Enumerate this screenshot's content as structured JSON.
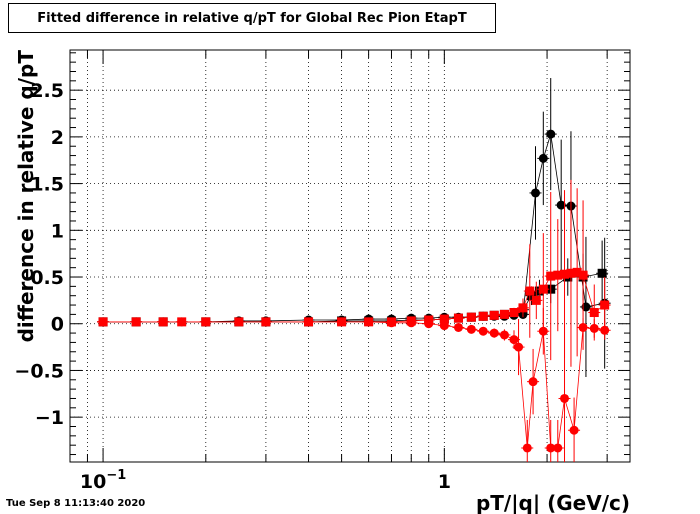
{
  "chart_data": {
    "type": "scatter",
    "title": "Fitted difference in relative q/pT for Global Rec Pion EtapT",
    "xlabel": "pT/|q| (GeV/c)",
    "ylabel": "difference in relative q/pT",
    "xscale": "log",
    "xlim": [
      0.08,
      3.5
    ],
    "ylim": [
      -1.48,
      2.93
    ],
    "grid": true,
    "x_tick_labels": [
      {
        "value": 0.1,
        "base": "10",
        "exp": "−1"
      },
      {
        "value": 1,
        "base": "1",
        "exp": ""
      }
    ],
    "y_ticks": [
      -1,
      -0.5,
      0,
      0.5,
      1,
      1.5,
      2,
      2.5
    ],
    "y_tick_labels": [
      "−1",
      "−0.5",
      "0",
      "0.5",
      "1",
      "1.5",
      "2",
      "2.5"
    ],
    "series": [
      {
        "marker": "circle",
        "color": "#000000",
        "x": [
          0.1,
          0.125,
          0.15,
          0.17,
          0.2,
          0.25,
          0.3,
          0.4,
          0.5,
          0.6,
          0.7,
          0.8,
          0.9,
          1.0,
          1.1,
          1.2,
          1.3,
          1.4,
          1.5,
          1.6,
          1.7,
          1.85,
          1.95,
          2.05,
          2.2,
          2.35,
          2.6,
          2.95
        ],
        "y": [
          0.02,
          0.02,
          0.02,
          0.02,
          0.02,
          0.03,
          0.03,
          0.04,
          0.04,
          0.05,
          0.05,
          0.06,
          0.06,
          0.07,
          0.07,
          0.07,
          0.08,
          0.08,
          0.08,
          0.09,
          0.1,
          1.4,
          1.77,
          2.03,
          1.27,
          1.26,
          0.18,
          0.22
        ],
        "err": [
          0.02,
          0.02,
          0.01,
          0.01,
          0.01,
          0.01,
          0.01,
          0.01,
          0.01,
          0.01,
          0.01,
          0.01,
          0.01,
          0.01,
          0.01,
          0.02,
          0.02,
          0.03,
          0.03,
          0.04,
          0.05,
          0.5,
          0.5,
          0.6,
          0.7,
          0.8,
          0.75,
          0.7
        ]
      },
      {
        "marker": "square",
        "color": "#000000",
        "x": [
          0.1,
          0.125,
          0.15,
          0.2,
          0.25,
          0.3,
          0.4,
          0.5,
          0.6,
          0.7,
          0.8,
          0.9,
          1.0,
          1.1,
          1.2,
          1.3,
          1.4,
          1.5,
          1.6,
          1.7,
          1.8,
          1.9,
          2.05,
          2.3,
          2.55,
          2.9
        ],
        "y": [
          0.02,
          0.02,
          0.02,
          0.02,
          0.02,
          0.02,
          0.02,
          0.03,
          0.03,
          0.03,
          0.04,
          0.04,
          0.05,
          0.06,
          0.07,
          0.08,
          0.09,
          0.1,
          0.12,
          0.15,
          0.3,
          0.35,
          0.37,
          0.5,
          0.5,
          0.54
        ],
        "err": [
          0.01,
          0.01,
          0.01,
          0.01,
          0.01,
          0.01,
          0.01,
          0.01,
          0.01,
          0.01,
          0.01,
          0.01,
          0.01,
          0.01,
          0.01,
          0.02,
          0.02,
          0.03,
          0.04,
          0.05,
          0.1,
          0.12,
          0.15,
          0.2,
          0.25,
          0.35
        ]
      },
      {
        "marker": "circle",
        "color": "#ff0000",
        "x": [
          0.1,
          0.125,
          0.15,
          0.2,
          0.3,
          0.4,
          0.5,
          0.6,
          0.7,
          0.8,
          0.9,
          1.0,
          1.1,
          1.2,
          1.3,
          1.4,
          1.5,
          1.6,
          1.65,
          1.75,
          1.82,
          1.95,
          2.05,
          2.15,
          2.25,
          2.4,
          2.55,
          2.75,
          2.95
        ],
        "y": [
          0.02,
          0.02,
          0.02,
          0.02,
          0.02,
          0.02,
          0.02,
          0.02,
          0.01,
          0.01,
          0.0,
          -0.02,
          -0.04,
          -0.06,
          -0.08,
          -0.1,
          -0.12,
          -0.17,
          -0.25,
          -1.33,
          -0.62,
          -0.08,
          -1.33,
          -1.33,
          -0.8,
          -1.14,
          -0.04,
          -0.05,
          -0.07
        ],
        "err": [
          0.01,
          0.01,
          0.01,
          0.01,
          0.01,
          0.01,
          0.01,
          0.01,
          0.01,
          0.01,
          0.01,
          0.01,
          0.02,
          0.03,
          0.04,
          0.05,
          0.06,
          0.1,
          0.3,
          0.3,
          0.35,
          0.25,
          0.3,
          0.3,
          0.8,
          0.35,
          0.1,
          0.1,
          0.1
        ]
      },
      {
        "marker": "square",
        "color": "#ff0000",
        "x": [
          0.1,
          0.125,
          0.15,
          0.17,
          0.2,
          0.25,
          0.3,
          0.4,
          0.5,
          0.6,
          0.7,
          0.8,
          0.9,
          1.0,
          1.1,
          1.2,
          1.3,
          1.4,
          1.5,
          1.6,
          1.7,
          1.78,
          1.86,
          1.95,
          2.05,
          2.15,
          2.25,
          2.35,
          2.45,
          2.55,
          2.75,
          2.95
        ],
        "y": [
          0.02,
          0.02,
          0.02,
          0.02,
          0.02,
          0.02,
          0.02,
          0.02,
          0.02,
          0.02,
          0.02,
          0.03,
          0.04,
          0.05,
          0.06,
          0.07,
          0.08,
          0.09,
          0.1,
          0.12,
          0.17,
          0.35,
          0.25,
          0.37,
          0.51,
          0.52,
          0.53,
          0.54,
          0.55,
          0.52,
          0.12,
          0.2
        ],
        "err": [
          0.01,
          0.01,
          0.01,
          0.01,
          0.01,
          0.01,
          0.01,
          0.01,
          0.01,
          0.01,
          0.01,
          0.01,
          0.01,
          0.01,
          0.01,
          0.02,
          0.02,
          0.03,
          0.03,
          0.05,
          0.1,
          0.5,
          0.2,
          0.6,
          0.9,
          0.6,
          0.9,
          1.0,
          0.9,
          0.8,
          0.3,
          0.3
        ]
      }
    ]
  },
  "footer": {
    "timestamp": "Tue Sep  8 11:13:40 2020"
  }
}
